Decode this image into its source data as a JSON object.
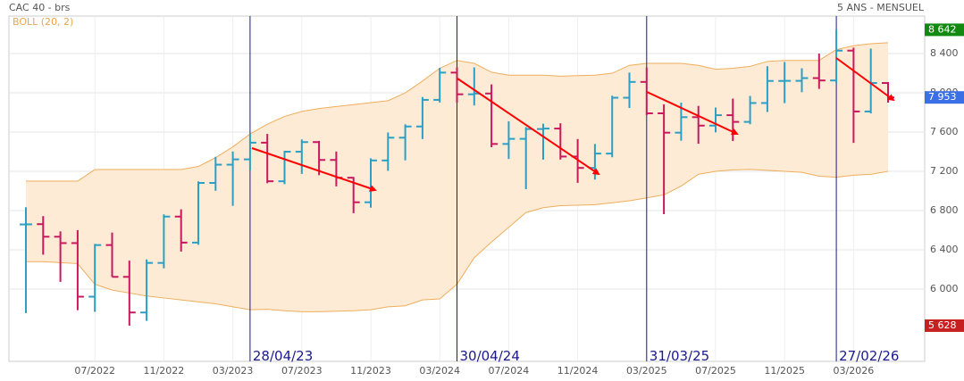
{
  "chart_data": {
    "type": "ohlc",
    "title": "CAC 40 - brs",
    "subtitle": "5 ANS - MENSUEL",
    "categories": [
      null,
      null,
      null,
      null,
      "07/2022",
      null,
      null,
      null,
      "11/2022",
      null,
      null,
      null,
      "03/2023",
      null,
      null,
      null,
      "07/2023",
      null,
      null,
      null,
      "11/2023",
      null,
      null,
      null,
      "03/2024",
      null,
      null,
      null,
      "07/2024",
      null,
      null,
      null,
      "11/2024",
      null,
      null,
      null,
      "03/2025",
      null,
      null,
      null,
      "07/2025",
      null,
      null,
      null,
      "11/2025",
      null,
      null,
      null,
      "03/2026",
      null,
      null
    ],
    "ohlc": {
      "open": [
        6659,
        6662,
        6534,
        6469,
        5923,
        6449,
        6125,
        5762,
        6267,
        6739,
        6474,
        7082,
        7268,
        7322,
        7492,
        7099,
        7400,
        7498,
        7316,
        7135,
        6885,
        7311,
        7543,
        7657,
        7928,
        8206,
        7985,
        7993,
        7479,
        7531,
        7631,
        7636,
        7351,
        7235,
        7381,
        7950,
        8111,
        7791,
        7594,
        7752,
        7666,
        7772,
        7704,
        7896,
        8121,
        8122,
        8150,
        8126,
        8430,
        7810,
        8100
      ],
      "high": [
        6834,
        6744,
        6588,
        6601,
        6460,
        6576,
        6290,
        6303,
        6762,
        6813,
        7098,
        7348,
        7402,
        7582,
        7581,
        7410,
        7525,
        7510,
        7402,
        7142,
        7333,
        7596,
        7679,
        7957,
        8254,
        8259,
        8259,
        8086,
        7710,
        7650,
        7686,
        7690,
        7529,
        7479,
        7971,
        8206,
        8258,
        7882,
        7900,
        7867,
        7850,
        7941,
        7968,
        8271,
        8314,
        8250,
        8400,
        8642,
        8460,
        8450,
        8110
      ],
      "low": [
        5756,
        6351,
        6074,
        5785,
        5769,
        6124,
        5628,
        5677,
        6212,
        6383,
        6452,
        7002,
        6849,
        7212,
        7079,
        7069,
        7174,
        7161,
        7047,
        6774,
        6830,
        7205,
        7312,
        7529,
        7901,
        7899,
        7871,
        7446,
        7326,
        7018,
        7319,
        7320,
        7083,
        7116,
        7343,
        7845,
        7772,
        6764,
        7512,
        7481,
        7597,
        7509,
        7680,
        7805,
        7895,
        8006,
        8040,
        8100,
        7490,
        7790,
        7900
      ],
      "close": [
        6660,
        6534,
        6469,
        5923,
        6449,
        6125,
        5762,
        6267,
        6739,
        6474,
        7082,
        7268,
        7322,
        7492,
        7099,
        7400,
        7498,
        7316,
        7135,
        6885,
        7311,
        7543,
        7657,
        7928,
        8206,
        7985,
        7993,
        7479,
        7531,
        7631,
        7636,
        7351,
        7235,
        7381,
        7950,
        8111,
        7791,
        7594,
        7752,
        7666,
        7772,
        7704,
        7896,
        8121,
        8122,
        8150,
        8126,
        8430,
        7810,
        8100,
        7953
      ],
      "up_color": "#2b9fc6",
      "down_color": "#c8195f"
    },
    "bands": {
      "name": "BOLL (20, 2)",
      "color": "#efae5c",
      "fill": "#fdebd6",
      "upper": [
        7100,
        7100,
        7100,
        7100,
        7218,
        7218,
        7218,
        7218,
        7218,
        7218,
        7250,
        7340,
        7450,
        7580,
        7680,
        7760,
        7810,
        7840,
        7860,
        7880,
        7900,
        7920,
        8000,
        8120,
        8250,
        8330,
        8300,
        8210,
        8180,
        8180,
        8180,
        8170,
        8175,
        8180,
        8200,
        8280,
        8300,
        8300,
        8300,
        8280,
        8240,
        8250,
        8270,
        8320,
        8330,
        8330,
        8330,
        8440,
        8480,
        8500,
        8510
      ],
      "lower": [
        6280,
        6280,
        6270,
        6260,
        6050,
        5990,
        5960,
        5930,
        5910,
        5890,
        5870,
        5850,
        5820,
        5790,
        5795,
        5780,
        5770,
        5770,
        5775,
        5780,
        5790,
        5820,
        5830,
        5890,
        5900,
        6050,
        6320,
        6480,
        6630,
        6780,
        6830,
        6850,
        6855,
        6860,
        6880,
        6900,
        6930,
        6960,
        7050,
        7170,
        7200,
        7215,
        7220,
        7210,
        7200,
        7190,
        7150,
        7140,
        7160,
        7170,
        7200
      ]
    },
    "events": [
      {
        "label": "28/04/23"
      },
      {
        "label": "30/04/24"
      },
      {
        "label": "31/03/25"
      },
      {
        "label": "27/02/26"
      }
    ],
    "price_tags": [
      {
        "value": 8642,
        "label": "8 642",
        "color": "#128a12"
      },
      {
        "value": 7953,
        "label": "7 953",
        "color": "#3b6fe6"
      },
      {
        "value": 5628,
        "label": "5 628",
        "color": "#c62020"
      }
    ],
    "ylim": [
      5264,
      8782
    ],
    "yticks": [
      {
        "value": 6000,
        "label": "6 000"
      },
      {
        "value": 6400,
        "label": "6 400"
      },
      {
        "value": 6800,
        "label": "6 800"
      },
      {
        "value": 7200,
        "label": "7 200"
      },
      {
        "value": 7600,
        "label": "7 600"
      },
      {
        "value": 8000,
        "label": "8 000"
      },
      {
        "value": 8400,
        "label": "8 400"
      }
    ],
    "grid": true
  }
}
